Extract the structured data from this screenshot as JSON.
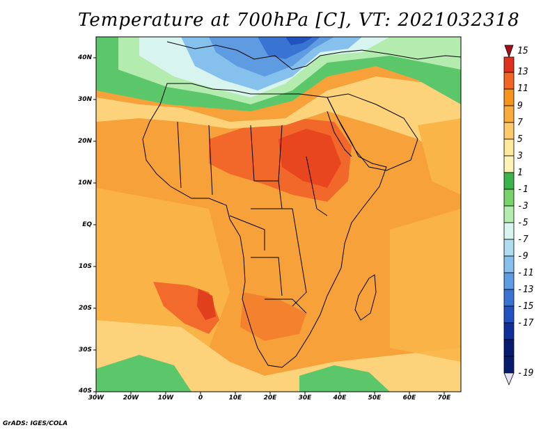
{
  "title": "Temperature at 700hPa [C], VT: 2021032318",
  "credit": "GrADS: IGES/COLA",
  "y_ticks": [
    "40N",
    "30N",
    "20N",
    "10N",
    "EQ",
    "10S",
    "20S",
    "30S",
    "40S"
  ],
  "x_ticks": [
    "30W",
    "20W",
    "10W",
    "0",
    "10E",
    "20E",
    "30E",
    "40E",
    "50E",
    "60E",
    "70E"
  ],
  "colorbar": {
    "labels": [
      "15",
      "13",
      "11",
      "9",
      "7",
      "5",
      "3",
      "1",
      "-1",
      "-3",
      "-5",
      "-7",
      "-9",
      "-11",
      "-13",
      "-15",
      "-17",
      "-19"
    ],
    "colors": [
      "#a50f15",
      "#e0301e",
      "#f26522",
      "#f7941d",
      "#f9ac3c",
      "#fcc96b",
      "#fde89b",
      "#3cb44b",
      "#78d36a",
      "#b4ecb0",
      "#d7f4ee",
      "#b0dcf0",
      "#86c0ec",
      "#5f9be0",
      "#3a74d3",
      "#2152c0",
      "#0f2f98",
      "#081c6e",
      "#e7e3f7"
    ]
  }
}
